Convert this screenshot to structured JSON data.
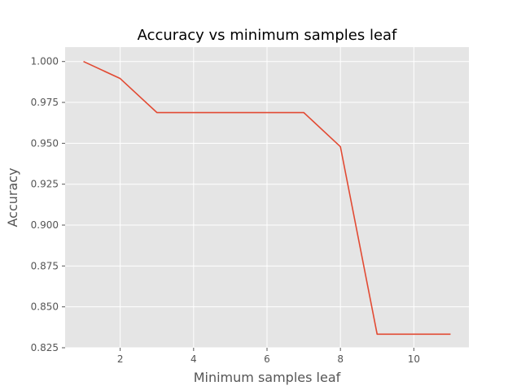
{
  "chart_data": {
    "type": "line",
    "title": "Accuracy vs minimum samples leaf",
    "xlabel": "Minimum samples leaf",
    "ylabel": "Accuracy",
    "x": [
      1,
      2,
      3,
      4,
      5,
      6,
      7,
      8,
      9,
      10,
      11
    ],
    "series": [
      {
        "values": [
          1.0,
          0.9896,
          0.9688,
          0.9688,
          0.9688,
          0.9688,
          0.9688,
          0.9479,
          0.8333,
          0.8333,
          0.8333
        ],
        "color": "#E24A33"
      }
    ],
    "xlim": [
      0.5,
      11.5
    ],
    "ylim": [
      0.825,
      1.0088
    ],
    "xticks": [
      2,
      4,
      6,
      8,
      10
    ],
    "xtick_labels": [
      "2",
      "4",
      "6",
      "8",
      "10"
    ],
    "yticks": [
      0.825,
      0.85,
      0.875,
      0.9,
      0.925,
      0.95,
      0.975,
      1.0
    ],
    "ytick_labels": [
      "0.825",
      "0.850",
      "0.875",
      "0.900",
      "0.925",
      "0.950",
      "0.975",
      "1.000"
    ],
    "grid": true,
    "style": "ggplot",
    "background_color": "#E5E5E5",
    "grid_color": "#FFFFFF"
  }
}
